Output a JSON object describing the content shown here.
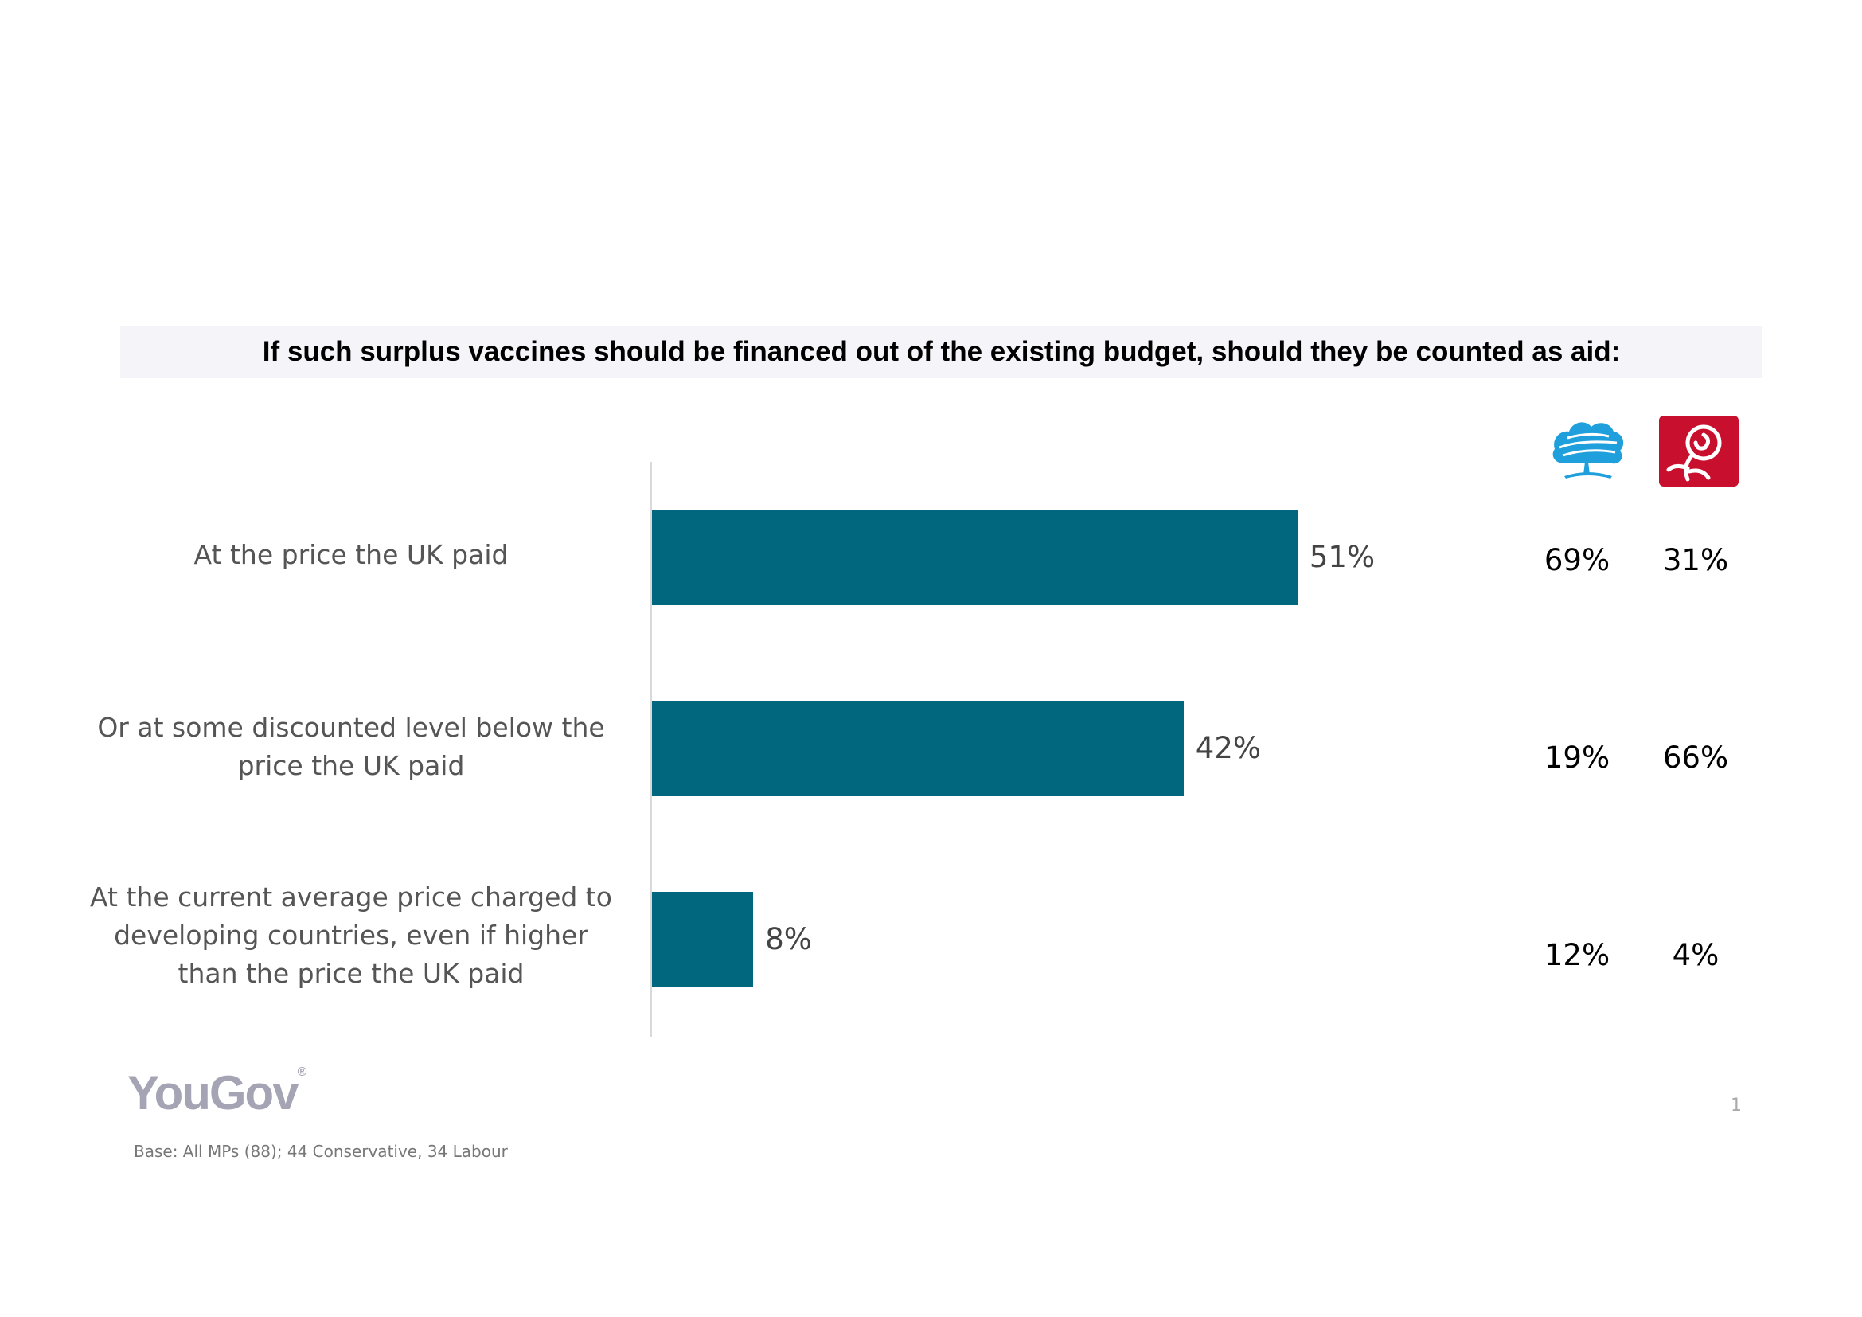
{
  "chart_data": {
    "type": "bar",
    "orientation": "horizontal",
    "title": "If such surplus vaccines should be financed out of the existing budget, should they be counted as aid:",
    "categories": [
      "At the price the UK paid",
      "Or at some discounted level below the price the UK paid",
      "At the current average price charged to developing countries, even if higher than the price the UK paid"
    ],
    "series": [
      {
        "values": [
          51,
          42,
          8
        ],
        "labels": [
          "51%",
          "42%",
          "8%"
        ],
        "color": "#00677f"
      }
    ],
    "xlim": [
      0,
      100
    ],
    "grid": false,
    "party_breakdown": [
      {
        "logo": "conservative-tree-logo",
        "values": [
          69,
          19,
          12
        ],
        "labels": [
          "69%",
          "19%",
          "12%"
        ],
        "color": "#1fa0dc"
      },
      {
        "logo": "labour-rose-logo",
        "values": [
          31,
          66,
          4
        ],
        "labels": [
          "31%",
          "66%",
          "4%"
        ],
        "color": "#c8102e"
      }
    ]
  },
  "labels": {
    "cat0": [
      "At the price the UK paid"
    ],
    "cat1": [
      "Or at some discounted level below the",
      "price the UK paid"
    ],
    "cat2": [
      "At the current average price charged to",
      "developing countries, even if higher",
      "than the price the UK paid"
    ]
  },
  "footer": {
    "brand": "YouGov",
    "brand_mark": "®",
    "base": "Base: All MPs (88); 44 Conservative, 34 Labour",
    "page": "1"
  }
}
